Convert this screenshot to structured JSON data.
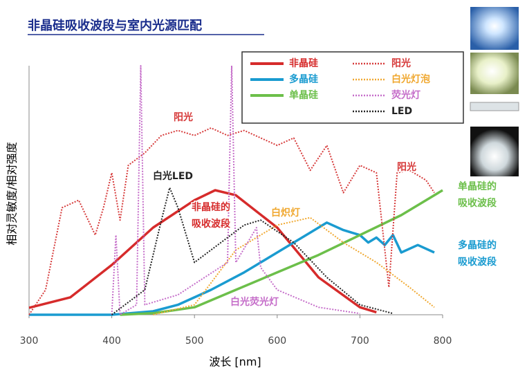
{
  "chart_data": {
    "type": "line",
    "title": "非晶硅吸收波段与室内光源匹配",
    "x_label": "波长 [nm]",
    "y_label": "相对灵敏度/相对强度",
    "xlim": [
      300,
      800
    ],
    "xticks": [
      300,
      400,
      500,
      600,
      700,
      800
    ],
    "ylim": [
      0,
      100
    ],
    "series": [
      {
        "name": "非晶硅",
        "color": "#d62b2b",
        "style": "solid",
        "x": [
          300,
          350,
          400,
          450,
          500,
          525,
          550,
          600,
          650,
          700,
          720
        ],
        "values": [
          2.8,
          7,
          20,
          35,
          46,
          50,
          48,
          35,
          15,
          3,
          1
        ]
      },
      {
        "name": "多晶硅",
        "color": "#1a9bd0",
        "style": "solid",
        "x": [
          300,
          400,
          450,
          480,
          520,
          560,
          600,
          640,
          660,
          680,
          700,
          710,
          720,
          730,
          740,
          750,
          770,
          790
        ],
        "values": [
          0,
          0,
          1.4,
          4,
          10,
          17,
          25,
          33,
          37,
          34,
          32,
          29,
          31,
          28,
          32,
          25,
          28,
          25
        ]
      },
      {
        "name": "单晶硅",
        "color": "#6cbf4a",
        "style": "solid",
        "x": [
          410,
          450,
          500,
          550,
          600,
          650,
          700,
          750,
          800
        ],
        "values": [
          0,
          0.6,
          3,
          10,
          17,
          24,
          32,
          40,
          50
        ]
      },
      {
        "name": "阳光",
        "color": "#d63a3a",
        "style": "dotted",
        "x": [
          300,
          320,
          340,
          360,
          380,
          390,
          400,
          410,
          420,
          440,
          460,
          480,
          500,
          520,
          540,
          560,
          580,
          600,
          620,
          640,
          660,
          680,
          700,
          720,
          735,
          745,
          760,
          780,
          790
        ],
        "values": [
          0,
          10,
          43,
          46,
          32,
          43,
          57,
          38,
          60,
          65,
          72,
          74,
          72,
          75,
          72,
          74,
          71,
          68,
          71,
          58,
          68,
          49,
          60,
          57,
          11,
          57,
          58,
          54,
          49
        ]
      },
      {
        "name": "白光灯泡",
        "color": "#f0a830",
        "style": "dotted",
        "x": [
          450,
          500,
          550,
          600,
          640,
          680,
          720,
          760,
          790
        ],
        "values": [
          0,
          4,
          26,
          36,
          39,
          29,
          21,
          11,
          3
        ]
      },
      {
        "name": "荧光灯",
        "color": "#c56dc9",
        "style": "dotted",
        "x": [
          400,
          405,
          410,
          430,
          435,
          440,
          480,
          540,
          545,
          550,
          575,
          580,
          600,
          650,
          700
        ],
        "values": [
          0,
          32,
          0,
          4,
          100,
          4,
          8,
          21,
          100,
          21,
          35,
          19,
          10,
          3,
          0.5
        ]
      },
      {
        "name": "LED",
        "color": "#222222",
        "style": "dotted",
        "x": [
          400,
          440,
          460,
          470,
          480,
          500,
          520,
          560,
          580,
          620,
          660,
          700,
          740
        ],
        "values": [
          0,
          10,
          38,
          51,
          43,
          21,
          26,
          36,
          38,
          29,
          15,
          4,
          0.5
        ]
      }
    ],
    "annotations": [
      {
        "lines": [
          "阳光"
        ],
        "color": "#d63a3a"
      },
      {
        "lines": [
          "阳光"
        ],
        "color": "#d63a3a"
      },
      {
        "lines": [
          "白光LED"
        ],
        "color": "#222222"
      },
      {
        "lines": [
          "非晶硅的",
          "吸收波段"
        ],
        "color": "#d62b2b"
      },
      {
        "lines": [
          "白炽灯"
        ],
        "color": "#f0a830"
      },
      {
        "lines": [
          "白光荧光灯"
        ],
        "color": "#c56dc9"
      },
      {
        "lines": [
          "单晶硅的",
          "吸收波段"
        ],
        "color": "#6cbf4a"
      },
      {
        "lines": [
          "多晶硅的",
          "吸收波段"
        ],
        "color": "#1a9bd0"
      }
    ]
  }
}
